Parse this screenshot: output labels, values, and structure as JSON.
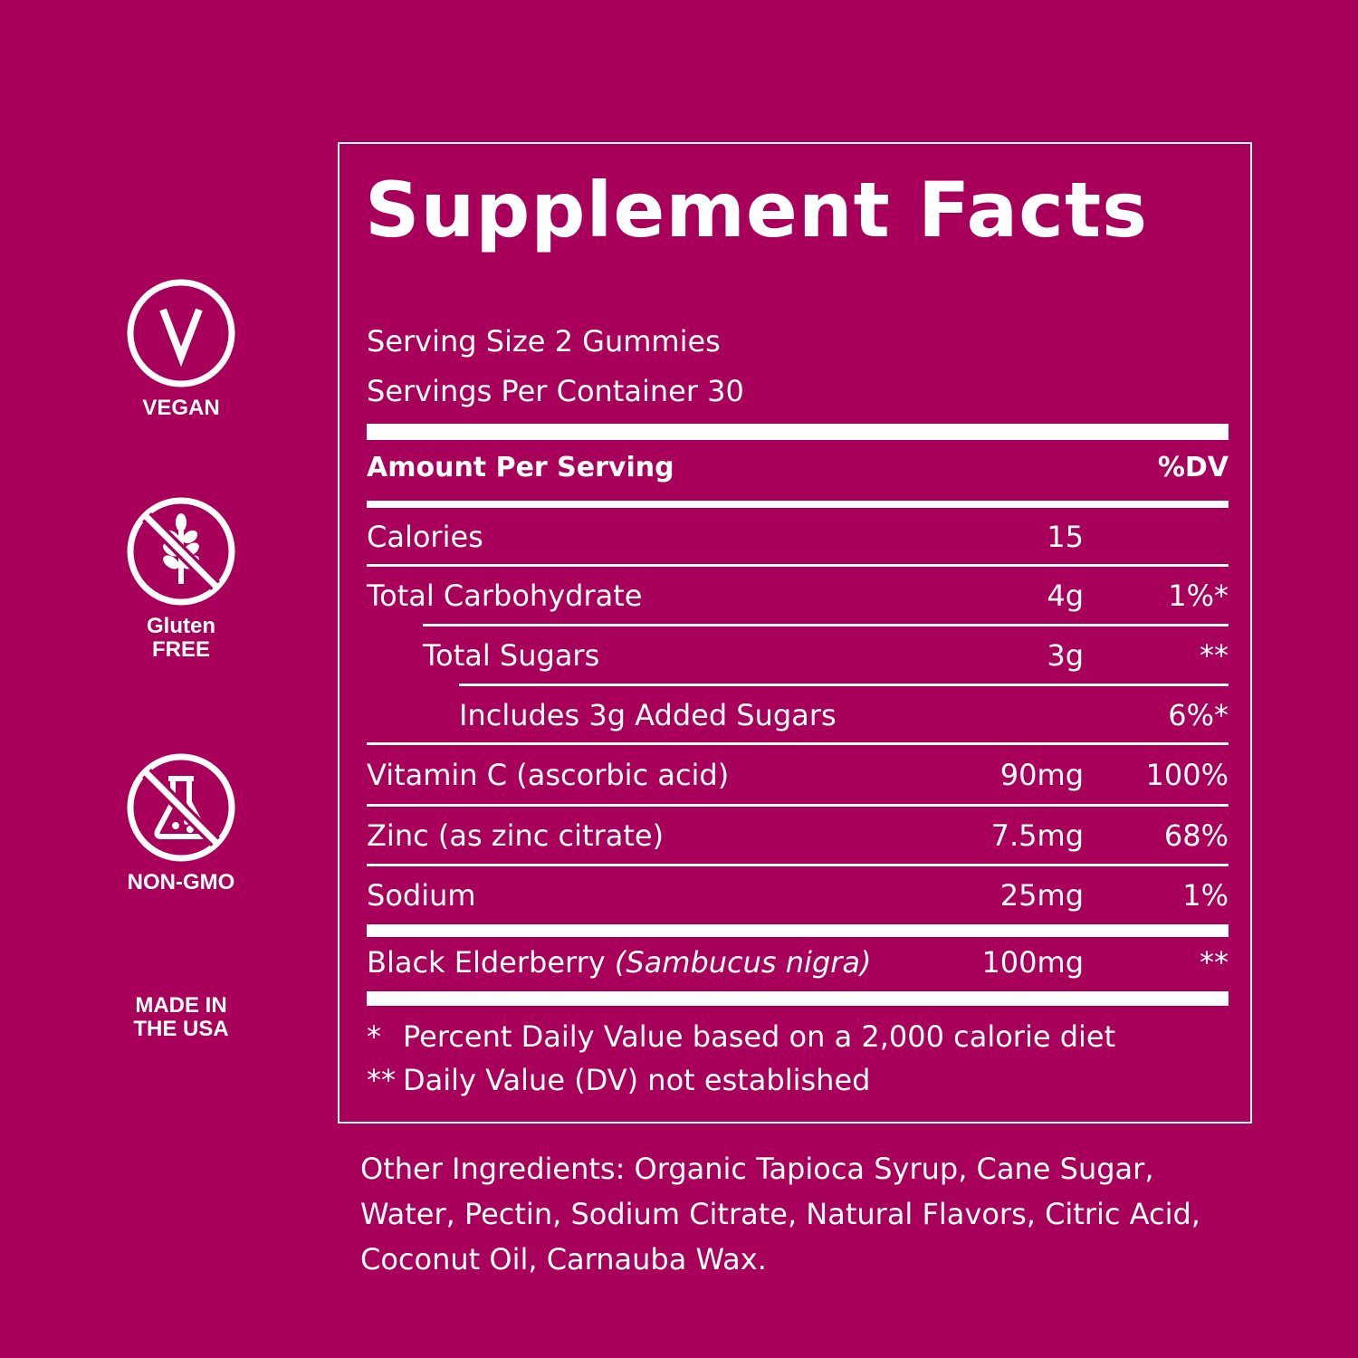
{
  "badges": [
    {
      "icon": "vegan-icon",
      "label": "VEGAN"
    },
    {
      "icon": "gluten-free-icon",
      "label": "Gluten\nFREE"
    },
    {
      "icon": "non-gmo-icon",
      "label": "NON-GMO"
    },
    {
      "icon": "",
      "label": "MADE IN\nTHE USA"
    }
  ],
  "facts": {
    "title": "Supplement Facts",
    "serving_size": "Serving Size 2 Gummies",
    "servings_per_container": "Servings Per Container 30",
    "header": {
      "amount": "Amount Per Serving",
      "dv": "%DV"
    },
    "rows": [
      {
        "name": "Calories",
        "amount": "15",
        "dv": ""
      },
      {
        "name": "Total Carbohydrate",
        "amount": "4g",
        "dv": "1%*"
      },
      {
        "name": "Total Sugars",
        "amount": "3g",
        "dv": "**"
      },
      {
        "name": "Includes 3g Added Sugars",
        "amount": "",
        "dv": "6%*"
      },
      {
        "name": "Vitamin C (ascorbic acid)",
        "amount": "90mg",
        "dv": "100%"
      },
      {
        "name": "Zinc (as zinc citrate)",
        "amount": "7.5mg",
        "dv": "68%"
      },
      {
        "name": "Sodium",
        "amount": "25mg",
        "dv": "1%"
      },
      {
        "name": "Black Elderberry",
        "scientific": "(Sambucus nigra)",
        "amount": "100mg",
        "dv": "**"
      }
    ],
    "footnotes": [
      {
        "mark": "*",
        "text": "Percent Daily Value based on a 2,000 calorie diet"
      },
      {
        "mark": "**",
        "text": "Daily Value (DV) not established"
      }
    ]
  },
  "other_ingredients": "Other Ingredients: Organic Tapioca Syrup, Cane Sugar, Water, Pectin, Sodium Citrate, Natural Flavors, Citric Acid, Coconut Oil, Carnauba Wax.",
  "colors": {
    "background": "#a8005a",
    "foreground": "#ffffff"
  }
}
